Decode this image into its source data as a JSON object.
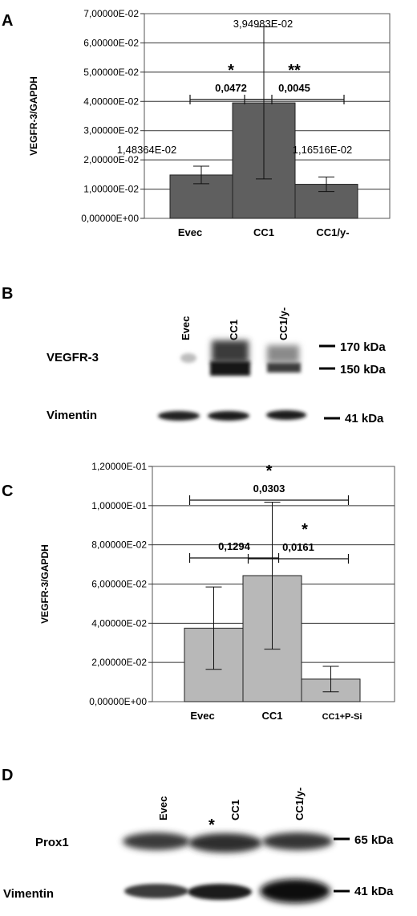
{
  "panels": {
    "a": {
      "letter": "A",
      "chart_data": {
        "type": "bar",
        "ylabel": "VEGFR-3/GAPDH",
        "ylim": [
          0,
          0.07
        ],
        "yticks": [
          "0,00000E+00",
          "1,00000E-02",
          "2,00000E-02",
          "3,00000E-02",
          "4,00000E-02",
          "5,00000E-02",
          "6,00000E-02",
          "7,00000E-02"
        ],
        "grid": true,
        "categories": [
          "Evec",
          "CC1",
          "CC1/y-"
        ],
        "values": [
          0.0148364,
          0.0394983,
          0.0116516
        ],
        "errors": [
          0.003,
          0.026,
          0.0025
        ],
        "data_labels": [
          "1,48364E-02",
          "3,94983E-02",
          "1,16516E-02"
        ],
        "bar_color": "#5f5f5f",
        "comparisons": [
          {
            "from": 0,
            "to": 1,
            "p": "0,0472",
            "stars": "*"
          },
          {
            "from": 1,
            "to": 2,
            "p": "0,0045",
            "stars": "**"
          }
        ]
      }
    },
    "b": {
      "letter": "B",
      "lanes": [
        "Evec",
        "CC1",
        "CC1/y-"
      ],
      "rows": [
        {
          "label": "VEGFR-3",
          "markers": [
            "170 kDa",
            "150 kDa"
          ]
        },
        {
          "label": "Vimentin",
          "markers": [
            "41 kDa"
          ]
        }
      ]
    },
    "c": {
      "letter": "C",
      "chart_data": {
        "type": "bar",
        "ylabel": "VEGFR-3/GAPDH",
        "ylim": [
          0,
          0.12
        ],
        "yticks": [
          "0,00000E+00",
          "2,00000E-02",
          "4,00000E-02",
          "6,00000E-02",
          "8,00000E-02",
          "1,00000E-01",
          "1,20000E-01"
        ],
        "grid": true,
        "categories": [
          "Evec",
          "CC1",
          "CC1+P-Si"
        ],
        "values": [
          0.0375,
          0.0643,
          0.0115
        ],
        "errors": [
          0.021,
          0.0375,
          0.0065
        ],
        "bar_color": "#b8b8b8",
        "comparisons": [
          {
            "from": 0,
            "to": 1,
            "p": "0,1294",
            "stars": ""
          },
          {
            "from": 1,
            "to": 2,
            "p": "0,0161",
            "stars": "*"
          },
          {
            "from": 0,
            "to": 2,
            "p": "0,0303",
            "stars": "*"
          }
        ]
      }
    },
    "d": {
      "letter": "D",
      "lanes": [
        "Evec",
        "CC1",
        "CC1/y-"
      ],
      "lane_star": "*",
      "rows": [
        {
          "label": "Prox1",
          "markers": [
            "65 kDa"
          ]
        },
        {
          "label": "Vimentin",
          "markers": [
            "41 kDa"
          ]
        }
      ]
    }
  }
}
